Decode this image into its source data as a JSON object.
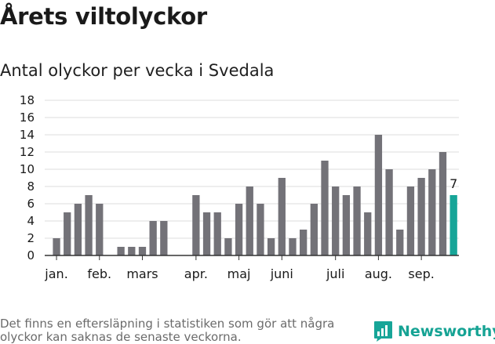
{
  "title": "Årets viltolyckor",
  "subtitle": "Antal olyckor per vecka i Svedala",
  "footnote": "Det finns en eftersläpning i statistiken som gör att några olyckor kan saknas de senaste veckorna.",
  "brand": {
    "name": "Newsworthy"
  },
  "colors": {
    "bar": "#737278",
    "highlight": "#17a598",
    "grid": "#dddddd",
    "axis": "#333333"
  },
  "chart_data": {
    "type": "bar",
    "title": "Antal olyckor per vecka i Svedala",
    "xlabel": "",
    "ylabel": "",
    "ylim": [
      0,
      18
    ],
    "yticks": [
      0,
      2,
      4,
      6,
      8,
      10,
      12,
      14,
      16,
      18
    ],
    "grid": true,
    "values": [
      2,
      5,
      6,
      7,
      6,
      0,
      1,
      1,
      1,
      4,
      4,
      0,
      0,
      7,
      5,
      5,
      2,
      6,
      8,
      6,
      2,
      9,
      2,
      3,
      6,
      11,
      8,
      7,
      8,
      5,
      14,
      10,
      3,
      8,
      9,
      10,
      12,
      7
    ],
    "months": [
      {
        "label": "jan.",
        "at": 0.5
      },
      {
        "label": "feb.",
        "at": 4.5
      },
      {
        "label": "mars",
        "at": 8.5
      },
      {
        "label": "apr.",
        "at": 13.5
      },
      {
        "label": "maj",
        "at": 17.5
      },
      {
        "label": "juni",
        "at": 21.5
      },
      {
        "label": "juli",
        "at": 26.5
      },
      {
        "label": "aug.",
        "at": 30.5
      },
      {
        "label": "sep.",
        "at": 34.5
      }
    ],
    "highlight_index": 37,
    "highlight_label": "7"
  }
}
